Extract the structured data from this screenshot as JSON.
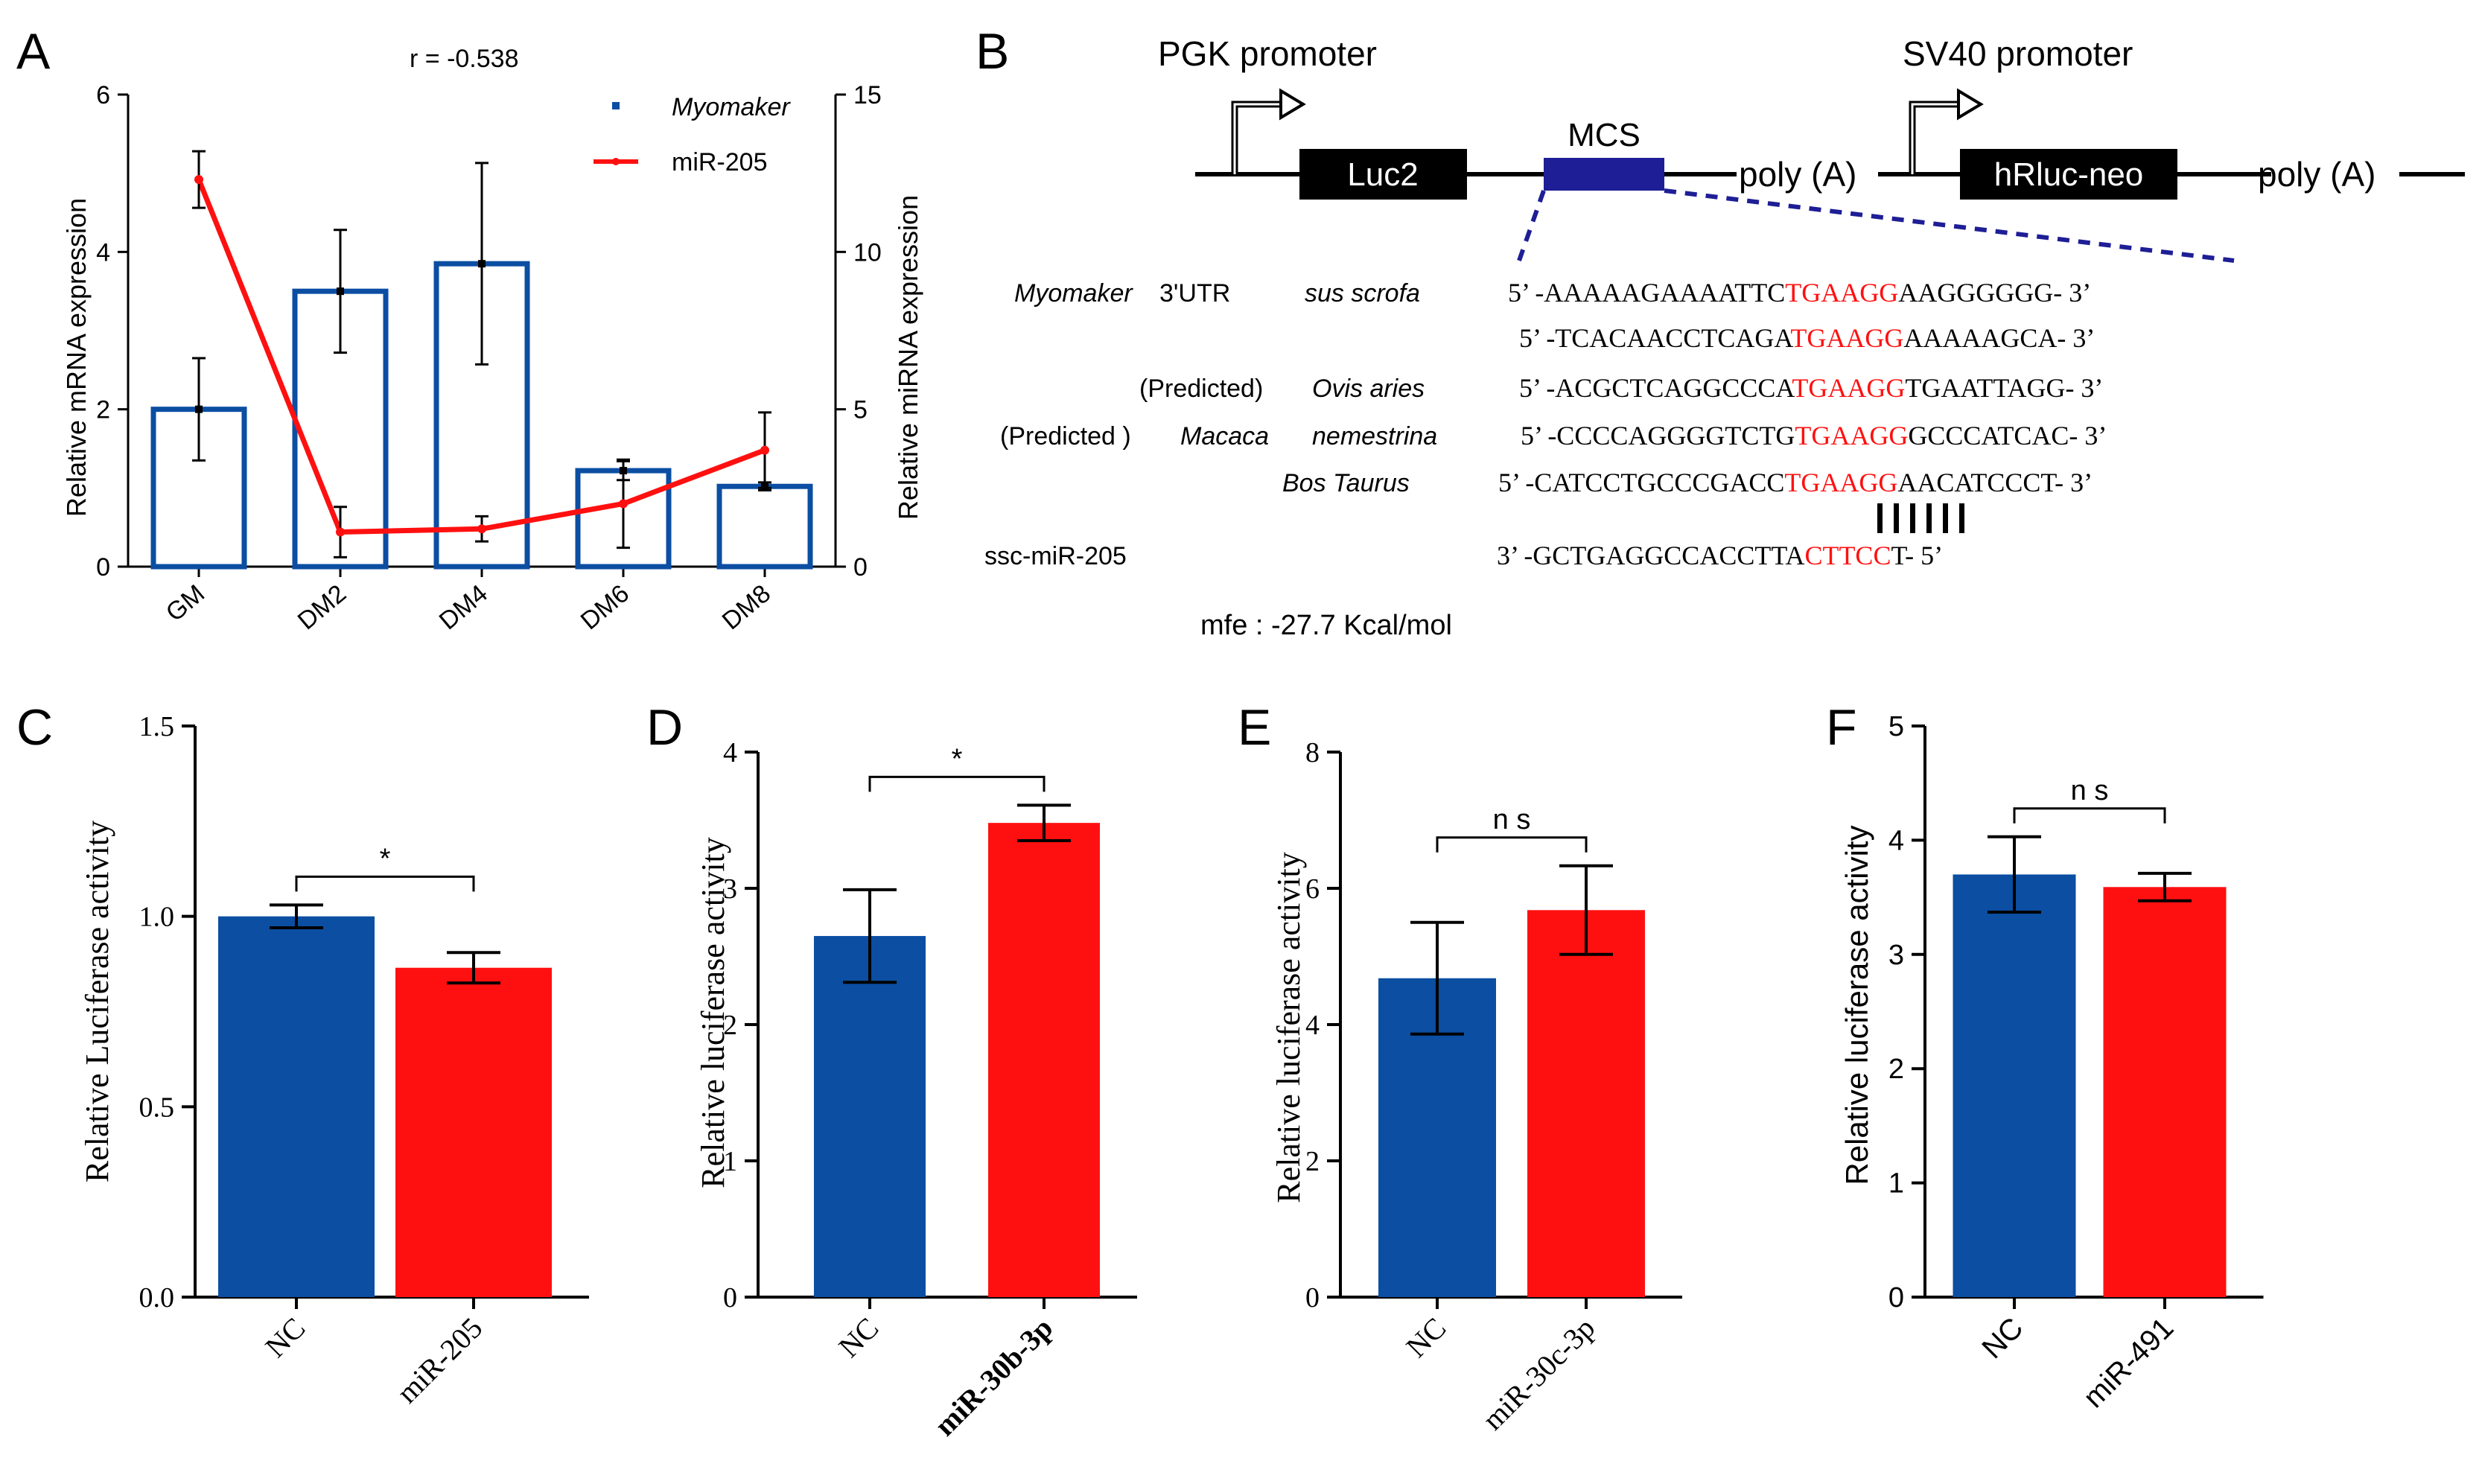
{
  "colors": {
    "blue": "#0b4ea2",
    "red": "#ff1010",
    "navy": "#1e1e96",
    "black": "#000000"
  },
  "panel_labels": [
    "A",
    "B",
    "C",
    "D",
    "E",
    "F"
  ],
  "panelA": {
    "correlation": "r = -0.538",
    "ylabel_left": "Relative mRNA expression",
    "ylabel_right": "Relative miRNA expression",
    "legend_bar": "Myomaker",
    "legend_line": "miR-205"
  },
  "panelB": {
    "pgk": "PGK promoter",
    "sv40": "SV40 promoter",
    "luc2": "Luc2",
    "mcs": "MCS",
    "polyA1": "poly (A)",
    "hrluc": "hRluc-neo",
    "polyA2": "poly (A)",
    "rows": [
      {
        "label_a": "Myomaker",
        "label_b": "3'UTR",
        "label_c": "sus scrofa",
        "pre": "5’ -AAAAAGAAAATTC",
        "seed": "TGAAGG",
        "post": "AAGGGGGG- 3’"
      },
      {
        "label_a": "",
        "label_b": "",
        "label_c": "",
        "pre": "5’ -TCACAACCTCAGA",
        "seed": "TGAAGG",
        "post": "AAAAAGCA- 3’"
      },
      {
        "label_a": "(Predicted)",
        "label_b": "",
        "label_c": "Ovis aries",
        "pre": "5’ -ACGCTCAGGCCCA",
        "seed": "TGAAGG",
        "post": "TGAATTAGG- 3’"
      },
      {
        "label_a": "(Predicted )",
        "label_b": "Macaca",
        "label_c": "nemestrina",
        "pre": "5’ -CCCCAGGGGTCTG",
        "seed": "TGAAGG",
        "post": "GCCCATCAC- 3’"
      },
      {
        "label_a": "",
        "label_b": "",
        "label_c": "Bos Taurus",
        "pre": "5’ -CATCCTGCCCGACC",
        "seed": "TGAAGG",
        "post": "AACATCCCT- 3’"
      }
    ],
    "mirna_label": "ssc-miR-205",
    "mirna_pre": "3’ -GCTGAGGCCACCTTA",
    "mirna_seed": "CTTCC",
    "mirna_post": "T- 5’",
    "mfe": "mfe : -27.7 Kcal/mol"
  },
  "chart_data": [
    {
      "panel": "A",
      "type": "bar+line",
      "categories": [
        "GM",
        "DM2",
        "DM4",
        "DM6",
        "DM8"
      ],
      "series": [
        {
          "name": "Myomaker",
          "kind": "bar",
          "axis": "left",
          "values": [
            2.0,
            3.5,
            3.85,
            1.22,
            1.02
          ],
          "errors": [
            0.65,
            0.78,
            1.28,
            0.12,
            0.05
          ]
        },
        {
          "name": "miR-205",
          "kind": "line",
          "axis": "right",
          "values": [
            12.3,
            1.1,
            1.2,
            2.0,
            3.7
          ],
          "errors": [
            0.9,
            0.8,
            0.4,
            1.4,
            1.2
          ]
        }
      ],
      "ylim_left": [
        0,
        6
      ],
      "yticks_left": [
        "0",
        "2",
        "4",
        "6"
      ],
      "ylim_right": [
        0,
        15
      ],
      "yticks_right": [
        "0",
        "5",
        "10",
        "15"
      ]
    },
    {
      "panel": "C",
      "type": "bar",
      "ylabel": "Relative Luciferase activity",
      "categories": [
        "NC",
        "miR-205"
      ],
      "values": [
        1.0,
        0.865
      ],
      "errors": [
        0.03,
        0.04
      ],
      "ylim": [
        0,
        1.5
      ],
      "yticks": [
        "0.0",
        "0.5",
        "1.0",
        "1.5"
      ],
      "sig": "*"
    },
    {
      "panel": "D",
      "type": "bar",
      "ylabel": "Relative luciferase activity",
      "categories": [
        "NC",
        "miR-30b-3p"
      ],
      "values": [
        2.65,
        3.48
      ],
      "errors": [
        0.34,
        0.13
      ],
      "ylim": [
        0,
        4
      ],
      "yticks": [
        "0",
        "1",
        "2",
        "3",
        "4"
      ],
      "sig": "*"
    },
    {
      "panel": "E",
      "type": "bar",
      "ylabel": "Relative luciferase activity",
      "categories": [
        "NC",
        "miR-30c-3p"
      ],
      "values": [
        4.68,
        5.68
      ],
      "errors": [
        0.82,
        0.65
      ],
      "ylim": [
        0,
        8
      ],
      "yticks": [
        "0",
        "2",
        "4",
        "6",
        "8"
      ],
      "sig": "n s"
    },
    {
      "panel": "F",
      "type": "bar",
      "ylabel": "Relative luciferase activity",
      "categories": [
        "NC",
        "miR-491"
      ],
      "values": [
        3.7,
        3.59
      ],
      "errors": [
        0.33,
        0.12
      ],
      "ylim": [
        0,
        5
      ],
      "yticks": [
        "0",
        "1",
        "2",
        "3",
        "4",
        "5"
      ],
      "sig": "n s"
    }
  ]
}
